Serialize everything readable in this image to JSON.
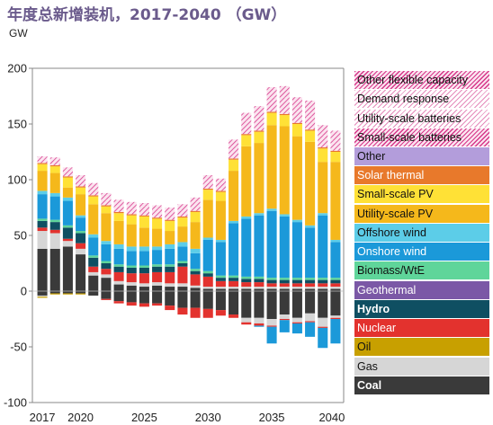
{
  "title": "年度总新增装机，2017-2040 （GW）",
  "unit_label": "GW",
  "chart_data": {
    "type": "bar",
    "stacked": true,
    "title": "年度总新增装机，2017-2040 （GW）",
    "ylabel": "GW",
    "xlabel": "",
    "ylim": [
      -100,
      200
    ],
    "yticks": [
      -100,
      -50,
      0,
      50,
      100,
      150,
      200
    ],
    "xtick_labels": [
      "2017",
      "2020",
      "2025",
      "2030",
      "2035",
      "2040"
    ],
    "categories": [
      "2017",
      "2018",
      "2019",
      "2020",
      "2021",
      "2022",
      "2023",
      "2024",
      "2025",
      "2026",
      "2027",
      "2028",
      "2029",
      "2030",
      "2031",
      "2032",
      "2033",
      "2034",
      "2035",
      "2036",
      "2037",
      "2038",
      "2039",
      "2040"
    ],
    "grid": false,
    "legend_position": "right",
    "series": [
      {
        "name": "Coal",
        "color": "#3a3a3a",
        "positive": [
          38,
          38,
          40,
          33,
          14,
          12,
          6,
          5,
          4,
          5,
          4,
          4,
          3,
          2,
          2,
          2,
          2,
          2,
          2,
          2,
          2,
          2,
          2,
          2
        ],
        "negative": [
          -4,
          -2,
          -2,
          -2,
          -4,
          -7,
          -9,
          -10,
          -11,
          -11,
          -13,
          -15,
          -15,
          -16,
          -17,
          -21,
          -24,
          -24,
          -25,
          -21,
          -24,
          -20,
          -24,
          -22
        ]
      },
      {
        "name": "Gas",
        "color": "#d6d6d6",
        "positive": [
          16,
          14,
          5,
          5,
          3,
          3,
          3,
          3,
          3,
          3,
          3,
          3,
          2,
          2,
          2,
          2,
          2,
          2,
          2,
          2,
          2,
          2,
          2,
          2
        ],
        "negative": [
          -1,
          0,
          0,
          0,
          0,
          0,
          0,
          0,
          0,
          0,
          0,
          0,
          0,
          0,
          0,
          0,
          -4,
          -5,
          -6,
          -4,
          -4,
          -7,
          -8,
          -2
        ]
      },
      {
        "name": "Oil",
        "color": "#c8a000",
        "positive": [
          0,
          0,
          0,
          0,
          0,
          0,
          0,
          0,
          0,
          0,
          0,
          0,
          0,
          0,
          0,
          0,
          0,
          0,
          0,
          0,
          0,
          0,
          0,
          0
        ],
        "negative": [
          -1,
          -1,
          -1,
          -1,
          0,
          0,
          0,
          0,
          0,
          0,
          0,
          0,
          0,
          0,
          0,
          0,
          0,
          0,
          0,
          0,
          0,
          0,
          0,
          0
        ]
      },
      {
        "name": "Nuclear",
        "color": "#e3322e",
        "positive": [
          3,
          3,
          2,
          5,
          5,
          5,
          8,
          8,
          9,
          9,
          10,
          15,
          10,
          9,
          5,
          5,
          4,
          4,
          3,
          3,
          3,
          3,
          3,
          3
        ],
        "negative": [
          0,
          0,
          0,
          0,
          0,
          -1,
          -2,
          -3,
          -3,
          -2,
          -4,
          -6,
          -9,
          -8,
          -5,
          -3,
          -2,
          -2,
          -1,
          -1,
          -1,
          -1,
          -1,
          -1
        ]
      },
      {
        "name": "Hydro",
        "color": "#0f4f62",
        "positive": [
          6,
          7,
          10,
          9,
          8,
          5,
          5,
          5,
          5,
          5,
          5,
          3,
          3,
          3,
          3,
          3,
          3,
          3,
          3,
          3,
          3,
          3,
          3,
          3
        ],
        "negative": [
          0,
          0,
          0,
          0,
          0,
          0,
          0,
          0,
          0,
          0,
          0,
          0,
          0,
          0,
          0,
          0,
          0,
          0,
          0,
          0,
          0,
          0,
          0,
          0
        ]
      },
      {
        "name": "Geothermal",
        "color": "#7b58a6",
        "positive": [
          0,
          0,
          0,
          0,
          0,
          0,
          0,
          0,
          0,
          0,
          0,
          0,
          0,
          0,
          0,
          0,
          0,
          0,
          0,
          0,
          0,
          0,
          0,
          0
        ],
        "negative": [
          0,
          0,
          0,
          0,
          0,
          0,
          0,
          0,
          0,
          0,
          0,
          0,
          0,
          0,
          0,
          0,
          0,
          0,
          0,
          0,
          0,
          0,
          0,
          0
        ]
      },
      {
        "name": "Biomass/WtE",
        "color": "#5fd59a",
        "positive": [
          2,
          2,
          2,
          2,
          2,
          2,
          2,
          2,
          2,
          2,
          2,
          2,
          2,
          2,
          2,
          2,
          2,
          2,
          2,
          2,
          2,
          2,
          2,
          2
        ],
        "negative": [
          0,
          0,
          0,
          0,
          0,
          0,
          0,
          0,
          0,
          0,
          0,
          0,
          0,
          0,
          0,
          0,
          0,
          0,
          0,
          0,
          0,
          0,
          0,
          0
        ]
      },
      {
        "name": "Onshore wind",
        "color": "#1b99d9",
        "positive": [
          22,
          21,
          22,
          12,
          16,
          15,
          14,
          13,
          13,
          13,
          14,
          13,
          14,
          28,
          30,
          47,
          52,
          55,
          60,
          55,
          50,
          45,
          56,
          32
        ],
        "negative": [
          0,
          0,
          0,
          0,
          0,
          0,
          0,
          0,
          0,
          0,
          0,
          0,
          0,
          0,
          0,
          0,
          0,
          -1,
          -15,
          -11,
          -9,
          -13,
          -18,
          -22
        ]
      },
      {
        "name": "Offshore wind",
        "color": "#5ccde8",
        "positive": [
          3,
          3,
          3,
          2,
          3,
          3,
          4,
          4,
          4,
          3,
          4,
          4,
          4,
          2,
          2,
          2,
          2,
          2,
          2,
          2,
          2,
          2,
          2,
          2
        ],
        "negative": [
          0,
          0,
          0,
          0,
          0,
          0,
          0,
          0,
          0,
          0,
          0,
          0,
          0,
          0,
          0,
          0,
          0,
          0,
          0,
          0,
          0,
          0,
          0,
          0
        ]
      },
      {
        "name": "Utility-scale PV",
        "color": "#f5b81b",
        "positive": [
          18,
          18,
          9,
          19,
          27,
          25,
          21,
          20,
          17,
          16,
          12,
          14,
          24,
          34,
          35,
          45,
          63,
          63,
          75,
          79,
          75,
          75,
          46,
          70
        ],
        "negative": [
          0,
          0,
          0,
          0,
          0,
          0,
          0,
          0,
          0,
          0,
          0,
          0,
          0,
          0,
          0,
          0,
          0,
          0,
          0,
          0,
          0,
          0,
          0,
          0
        ]
      },
      {
        "name": "Small-scale PV",
        "color": "#ffe136",
        "positive": [
          6,
          6,
          9,
          6,
          7,
          6,
          7,
          8,
          10,
          9,
          9,
          8,
          9,
          9,
          8,
          10,
          10,
          10,
          11,
          10,
          11,
          10,
          12,
          9
        ],
        "negative": [
          0,
          0,
          0,
          0,
          0,
          0,
          0,
          0,
          0,
          0,
          0,
          0,
          0,
          0,
          0,
          0,
          0,
          0,
          0,
          0,
          0,
          0,
          0,
          0
        ]
      },
      {
        "name": "Solar thermal",
        "color": "#e8792b",
        "positive": [
          1,
          1,
          1,
          1,
          1,
          1,
          1,
          1,
          1,
          1,
          1,
          1,
          1,
          1,
          1,
          1,
          1,
          1,
          1,
          1,
          1,
          1,
          1,
          1
        ],
        "negative": [
          0,
          0,
          0,
          0,
          0,
          0,
          0,
          0,
          0,
          0,
          0,
          0,
          0,
          0,
          0,
          0,
          0,
          0,
          0,
          0,
          0,
          0,
          0,
          0
        ]
      },
      {
        "name": "Other",
        "color": "#b39ddb",
        "positive": [
          0,
          0,
          0,
          0,
          0,
          0,
          0,
          0,
          0,
          0,
          0,
          0,
          0,
          0,
          0,
          0,
          0,
          0,
          0,
          0,
          0,
          0,
          0,
          0
        ],
        "negative": [
          0,
          0,
          0,
          0,
          0,
          0,
          0,
          0,
          0,
          0,
          0,
          0,
          0,
          0,
          0,
          0,
          0,
          0,
          0,
          0,
          0,
          0,
          0,
          0
        ]
      },
      {
        "name": "Small-scale batteries",
        "color": "#d6378a",
        "pattern": "hatch",
        "positive": [
          3,
          4,
          5,
          5,
          5,
          5,
          5,
          5,
          5,
          5,
          5,
          5,
          5,
          5,
          4,
          8,
          9,
          10,
          10,
          12,
          11,
          12,
          8,
          7
        ],
        "negative": [
          0,
          0,
          0,
          0,
          0,
          0,
          0,
          0,
          0,
          0,
          0,
          0,
          0,
          0,
          0,
          0,
          0,
          0,
          0,
          0,
          0,
          0,
          0,
          0
        ]
      },
      {
        "name": "Utility-scale batteries",
        "color": "#ffffff",
        "pattern": "hatch",
        "positive": [
          1,
          1,
          1,
          3,
          3,
          3,
          3,
          3,
          3,
          3,
          3,
          3,
          3,
          3,
          3,
          3,
          3,
          3,
          3,
          3,
          3,
          3,
          3,
          2
        ],
        "negative": [
          0,
          0,
          0,
          0,
          0,
          0,
          0,
          0,
          0,
          0,
          0,
          0,
          0,
          0,
          0,
          0,
          0,
          0,
          0,
          0,
          0,
          0,
          0,
          0
        ]
      },
      {
        "name": "Demand response",
        "color": "#ffffff",
        "pattern": "hatch",
        "positive": [
          1,
          1,
          1,
          1,
          2,
          2,
          2,
          2,
          2,
          2,
          2,
          2,
          3,
          3,
          3,
          5,
          6,
          8,
          8,
          9,
          8,
          10,
          8,
          8
        ],
        "negative": [
          0,
          0,
          0,
          0,
          0,
          0,
          0,
          0,
          0,
          0,
          0,
          0,
          0,
          0,
          0,
          0,
          0,
          0,
          0,
          0,
          0,
          0,
          0,
          0
        ]
      },
      {
        "name": "Other flexible capacity",
        "color": "#d6378a",
        "pattern": "hatch",
        "positive": [
          1,
          1,
          1,
          1,
          1,
          1,
          1,
          1,
          1,
          1,
          1,
          1,
          1,
          1,
          1,
          1,
          1,
          1,
          1,
          1,
          1,
          1,
          1,
          1
        ],
        "negative": [
          0,
          0,
          0,
          0,
          0,
          0,
          0,
          0,
          0,
          0,
          0,
          0,
          0,
          0,
          0,
          0,
          0,
          0,
          0,
          0,
          0,
          0,
          0,
          0
        ]
      }
    ]
  }
}
